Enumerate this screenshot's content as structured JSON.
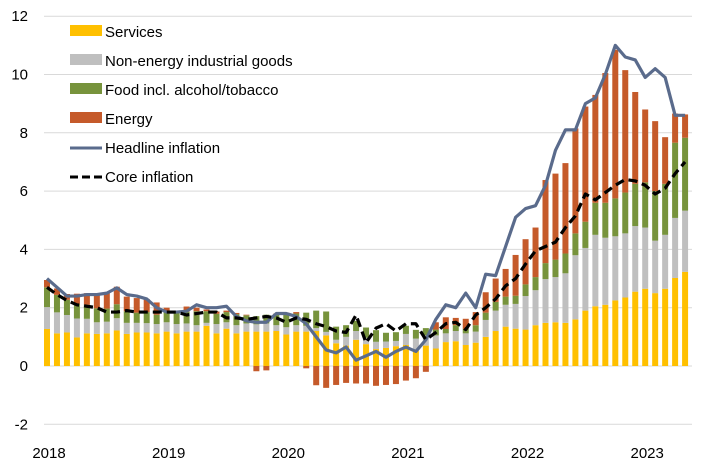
{
  "chart_data": {
    "type": "bar",
    "subtype": "stacked-bar-with-lines",
    "title": "",
    "xlabel": "",
    "ylabel": "",
    "ylim": [
      -2,
      12
    ],
    "yticks": [
      -2,
      0,
      2,
      4,
      6,
      8,
      10,
      12
    ],
    "ytick_labels": [
      "-2",
      "0",
      "2",
      "4",
      "6",
      "8",
      "10",
      "12"
    ],
    "xtick_labels": [
      "2018",
      "2019",
      "2020",
      "2021",
      "2022",
      "2023"
    ],
    "grid": "horizontal",
    "legend_position": "top-left",
    "period": "monthly, Jan 2018 - May 2023",
    "x": [
      "2018-01",
      "2018-02",
      "2018-03",
      "2018-04",
      "2018-05",
      "2018-06",
      "2018-07",
      "2018-08",
      "2018-09",
      "2018-10",
      "2018-11",
      "2018-12",
      "2019-01",
      "2019-02",
      "2019-03",
      "2019-04",
      "2019-05",
      "2019-06",
      "2019-07",
      "2019-08",
      "2019-09",
      "2019-10",
      "2019-11",
      "2019-12",
      "2020-01",
      "2020-02",
      "2020-03",
      "2020-04",
      "2020-05",
      "2020-06",
      "2020-07",
      "2020-08",
      "2020-09",
      "2020-10",
      "2020-11",
      "2020-12",
      "2021-01",
      "2021-02",
      "2021-03",
      "2021-04",
      "2021-05",
      "2021-06",
      "2021-07",
      "2021-08",
      "2021-09",
      "2021-10",
      "2021-11",
      "2021-12",
      "2022-01",
      "2022-02",
      "2022-03",
      "2022-04",
      "2022-05",
      "2022-06",
      "2022-07",
      "2022-08",
      "2022-09",
      "2022-10",
      "2022-11",
      "2022-12",
      "2023-01",
      "2023-02",
      "2023-03",
      "2023-04",
      "2023-05"
    ],
    "bar_series": [
      {
        "name": "Services",
        "color": "#FFC000",
        "values": [
          1.27,
          1.12,
          1.15,
          0.98,
          1.12,
          1.1,
          1.12,
          1.22,
          1.1,
          1.15,
          1.15,
          1.12,
          1.18,
          1.12,
          1.18,
          1.18,
          1.38,
          1.12,
          1.28,
          1.12,
          1.18,
          1.18,
          1.18,
          1.2,
          1.08,
          1.18,
          1.18,
          1.2,
          1.05,
          0.78,
          0.7,
          0.9,
          0.75,
          0.58,
          0.62,
          0.68,
          0.72,
          0.52,
          0.7,
          0.6,
          0.82,
          0.85,
          0.72,
          0.8,
          1.0,
          1.2,
          1.35,
          1.28,
          1.25,
          1.4,
          1.48,
          1.5,
          1.48,
          1.6,
          1.9,
          2.05,
          2.1,
          2.25,
          2.35,
          2.55,
          2.65,
          2.5,
          2.65,
          3.02,
          3.23
        ]
      },
      {
        "name": "Non-energy industrial goods",
        "color": "#BFBFBF",
        "values": [
          0.75,
          0.72,
          0.6,
          0.65,
          0.5,
          0.4,
          0.4,
          0.42,
          0.38,
          0.33,
          0.32,
          0.32,
          0.32,
          0.32,
          0.28,
          0.22,
          0.1,
          0.32,
          0.22,
          0.28,
          0.28,
          0.25,
          0.28,
          0.2,
          0.25,
          0.22,
          0.2,
          0.1,
          0.12,
          0.12,
          0.3,
          0.3,
          0.22,
          0.25,
          0.22,
          0.18,
          0.38,
          0.42,
          0.35,
          0.45,
          0.3,
          0.35,
          0.4,
          0.38,
          0.58,
          0.7,
          0.75,
          0.85,
          1.15,
          1.2,
          1.5,
          1.55,
          1.7,
          2.2,
          2.15,
          2.45,
          2.3,
          2.2,
          2.2,
          2.25,
          2.1,
          1.8,
          1.85,
          2.06,
          2.1
        ]
      },
      {
        "name": "Food incl. alcohol/tobacco",
        "color": "#77933C",
        "values": [
          0.68,
          0.6,
          0.52,
          0.5,
          0.48,
          0.48,
          0.45,
          0.48,
          0.4,
          0.35,
          0.38,
          0.32,
          0.35,
          0.38,
          0.4,
          0.48,
          0.4,
          0.35,
          0.35,
          0.38,
          0.28,
          0.28,
          0.3,
          0.38,
          0.42,
          0.4,
          0.45,
          0.6,
          0.7,
          0.45,
          0.4,
          0.35,
          0.35,
          0.4,
          0.3,
          0.3,
          0.28,
          0.3,
          0.25,
          0.2,
          0.15,
          0.2,
          0.15,
          0.22,
          0.25,
          0.3,
          0.28,
          0.28,
          0.4,
          0.45,
          0.55,
          0.6,
          0.68,
          0.75,
          0.9,
          1.1,
          1.2,
          1.3,
          1.4,
          1.45,
          1.55,
          1.7,
          1.75,
          2.58,
          2.5
        ]
      },
      {
        "name": "Energy",
        "color": "#C55A2A",
        "values": [
          0.25,
          0.22,
          0.2,
          0.35,
          0.4,
          0.5,
          0.55,
          0.6,
          0.5,
          0.5,
          0.45,
          0.42,
          0.15,
          0.08,
          0.18,
          0.12,
          0.06,
          0.08,
          0.05,
          0.04,
          0.02,
          -0.18,
          -0.15,
          0.02,
          0.08,
          0.05,
          -0.08,
          -0.66,
          -0.75,
          -0.65,
          -0.58,
          -0.6,
          -0.6,
          -0.68,
          -0.65,
          -0.62,
          -0.5,
          -0.42,
          -0.2,
          0.25,
          0.4,
          0.25,
          0.35,
          0.45,
          0.7,
          0.8,
          0.95,
          1.4,
          1.55,
          1.7,
          2.85,
          2.95,
          3.1,
          3.6,
          3.95,
          3.7,
          4.45,
          5.1,
          4.2,
          3.15,
          2.5,
          2.4,
          1.6,
          1.0,
          0.8
        ]
      }
    ],
    "line_series": [
      {
        "name": "Headline inflation",
        "color": "#5A6B8C",
        "style": "solid",
        "values": [
          3.0,
          2.7,
          2.4,
          2.4,
          2.45,
          2.45,
          2.5,
          2.68,
          2.45,
          2.4,
          2.3,
          2.0,
          1.85,
          1.85,
          1.88,
          2.1,
          2.0,
          2.0,
          2.05,
          1.7,
          1.55,
          1.5,
          1.5,
          1.8,
          1.8,
          1.7,
          1.45,
          1.0,
          0.55,
          0.45,
          0.65,
          0.2,
          0.35,
          0.5,
          0.3,
          0.5,
          0.65,
          0.5,
          0.9,
          1.6,
          2.1,
          2.0,
          2.5,
          2.0,
          3.15,
          3.1,
          4.1,
          5.1,
          5.4,
          5.5,
          6.2,
          7.4,
          8.1,
          8.1,
          9.0,
          9.2,
          10.0,
          11.0,
          10.6,
          10.5,
          9.9,
          10.2,
          9.9,
          8.6,
          8.6
        ]
      },
      {
        "name": "Core inflation",
        "color": "#000000",
        "style": "dashed",
        "values": [
          2.7,
          2.45,
          2.25,
          2.1,
          2.05,
          2.0,
          1.85,
          1.85,
          1.9,
          1.85,
          1.85,
          1.85,
          1.85,
          1.85,
          1.75,
          1.8,
          1.85,
          1.85,
          1.65,
          1.65,
          1.6,
          1.65,
          1.7,
          1.65,
          1.5,
          1.65,
          1.6,
          1.45,
          1.35,
          1.2,
          1.15,
          1.75,
          0.8,
          1.3,
          1.45,
          1.2,
          1.45,
          1.45,
          0.9,
          1.15,
          1.45,
          1.5,
          1.25,
          1.75,
          2.0,
          2.3,
          2.75,
          3.0,
          3.5,
          3.95,
          4.1,
          4.25,
          4.75,
          5.15,
          5.9,
          5.7,
          5.95,
          6.2,
          6.4,
          6.35,
          6.2,
          5.9,
          6.1,
          6.6,
          7.0
        ]
      }
    ]
  }
}
